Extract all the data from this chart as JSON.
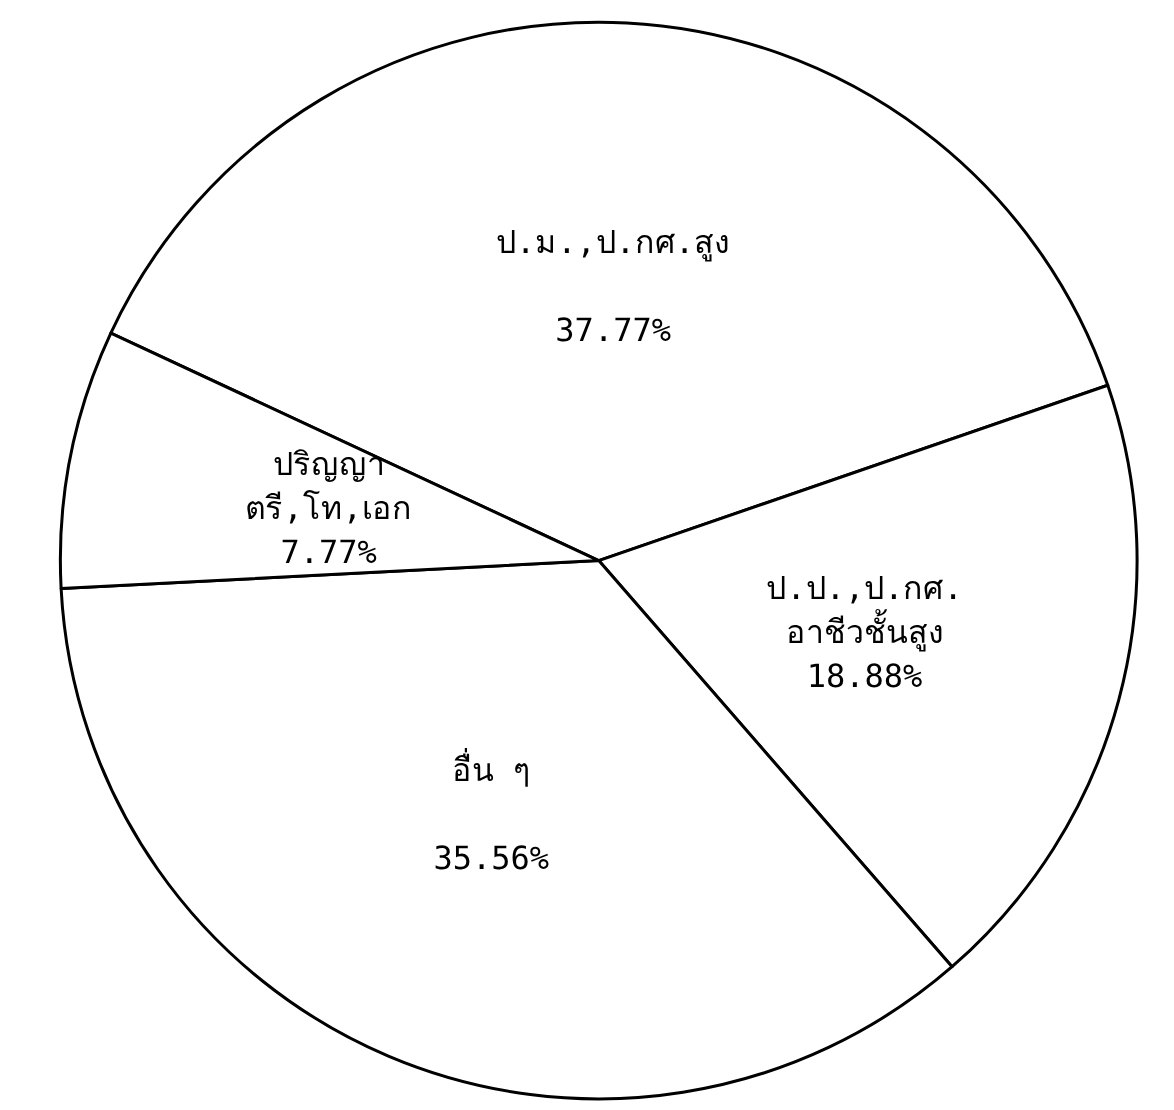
{
  "chart_data": {
    "type": "pie",
    "categories": [
      "ป.ม.,ป.กศ.สูง",
      "ป.ป.,ป.กศ.\nอาชีวชั้นสูง",
      "อื่น ๆ",
      "ปริญญา\nตรี,โท,เอก"
    ],
    "values": [
      37.77,
      18.88,
      35.56,
      7.77
    ],
    "value_labels": [
      "37.77%",
      "18.88%",
      "35.56%",
      "7.77%"
    ],
    "colors": [
      "#ffffff",
      "#ffffff",
      "#ffffff",
      "#ffffff"
    ],
    "legend": false
  }
}
